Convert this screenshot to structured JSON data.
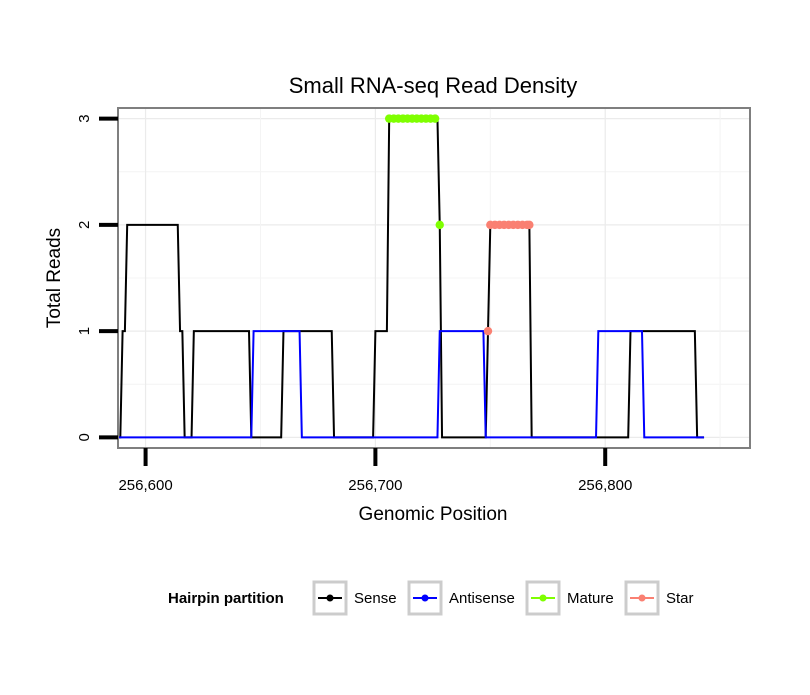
{
  "chart_data": {
    "type": "line",
    "title": "Small RNA-seq Read Density",
    "xlabel": "Genomic Position",
    "ylabel": "Total Reads",
    "xlim": [
      256588,
      256863
    ],
    "ylim": [
      -0.1,
      3.1
    ],
    "x_ticks": [
      {
        "value": 256600,
        "label": "256,600"
      },
      {
        "value": 256700,
        "label": "256,700"
      },
      {
        "value": 256800,
        "label": "256,800"
      }
    ],
    "y_ticks": [
      {
        "value": 0,
        "label": "0"
      },
      {
        "value": 1,
        "label": "1"
      },
      {
        "value": 2,
        "label": "2"
      },
      {
        "value": 3,
        "label": "3"
      }
    ],
    "grid": true,
    "legend": {
      "title": "Hairpin partition",
      "position": "bottom"
    },
    "series": [
      {
        "name": "Sense",
        "color": "#000000",
        "mark": "line",
        "points": [
          [
            256585,
            0
          ],
          [
            256589,
            0
          ],
          [
            256590,
            1
          ],
          [
            256591,
            1
          ],
          [
            256592,
            2
          ],
          [
            256614,
            2
          ],
          [
            256615,
            1
          ],
          [
            256616,
            1
          ],
          [
            256617,
            0
          ],
          [
            256620,
            0
          ],
          [
            256621,
            1
          ],
          [
            256645,
            1
          ],
          [
            256646,
            0
          ],
          [
            256659,
            0
          ],
          [
            256660,
            1
          ],
          [
            256681,
            1
          ],
          [
            256682,
            0
          ],
          [
            256699,
            0
          ],
          [
            256700,
            1
          ],
          [
            256705,
            1
          ],
          [
            256706,
            3
          ],
          [
            256727,
            3
          ],
          [
            256728,
            2
          ],
          [
            256729,
            0
          ],
          [
            256748,
            0
          ],
          [
            256749,
            1
          ],
          [
            256750,
            2
          ],
          [
            256767,
            2
          ],
          [
            256768,
            0
          ],
          [
            256810,
            0
          ],
          [
            256811,
            1
          ],
          [
            256839,
            1
          ],
          [
            256840,
            0
          ],
          [
            256843,
            0
          ]
        ]
      },
      {
        "name": "Antisense",
        "color": "#0000ff",
        "mark": "line",
        "points": [
          [
            256585,
            0
          ],
          [
            256646,
            0
          ],
          [
            256647,
            1
          ],
          [
            256667,
            1
          ],
          [
            256668,
            0
          ],
          [
            256727,
            0
          ],
          [
            256728,
            1
          ],
          [
            256747,
            1
          ],
          [
            256748,
            0
          ],
          [
            256796,
            0
          ],
          [
            256797,
            1
          ],
          [
            256816,
            1
          ],
          [
            256817,
            0
          ],
          [
            256843,
            0
          ]
        ]
      },
      {
        "name": "Mature",
        "color": "#7fff00",
        "mark": "points",
        "points": [
          [
            256706,
            3
          ],
          [
            256708,
            3
          ],
          [
            256710,
            3
          ],
          [
            256712,
            3
          ],
          [
            256714,
            3
          ],
          [
            256716,
            3
          ],
          [
            256718,
            3
          ],
          [
            256720,
            3
          ],
          [
            256722,
            3
          ],
          [
            256724,
            3
          ],
          [
            256726,
            3
          ],
          [
            256728,
            2
          ]
        ]
      },
      {
        "name": "Star",
        "color": "#fa8072",
        "mark": "points",
        "points": [
          [
            256749,
            1
          ],
          [
            256750,
            2
          ],
          [
            256752,
            2
          ],
          [
            256754,
            2
          ],
          [
            256756,
            2
          ],
          [
            256758,
            2
          ],
          [
            256760,
            2
          ],
          [
            256762,
            2
          ],
          [
            256764,
            2
          ],
          [
            256766,
            2
          ],
          [
            256767,
            2
          ]
        ]
      }
    ]
  }
}
